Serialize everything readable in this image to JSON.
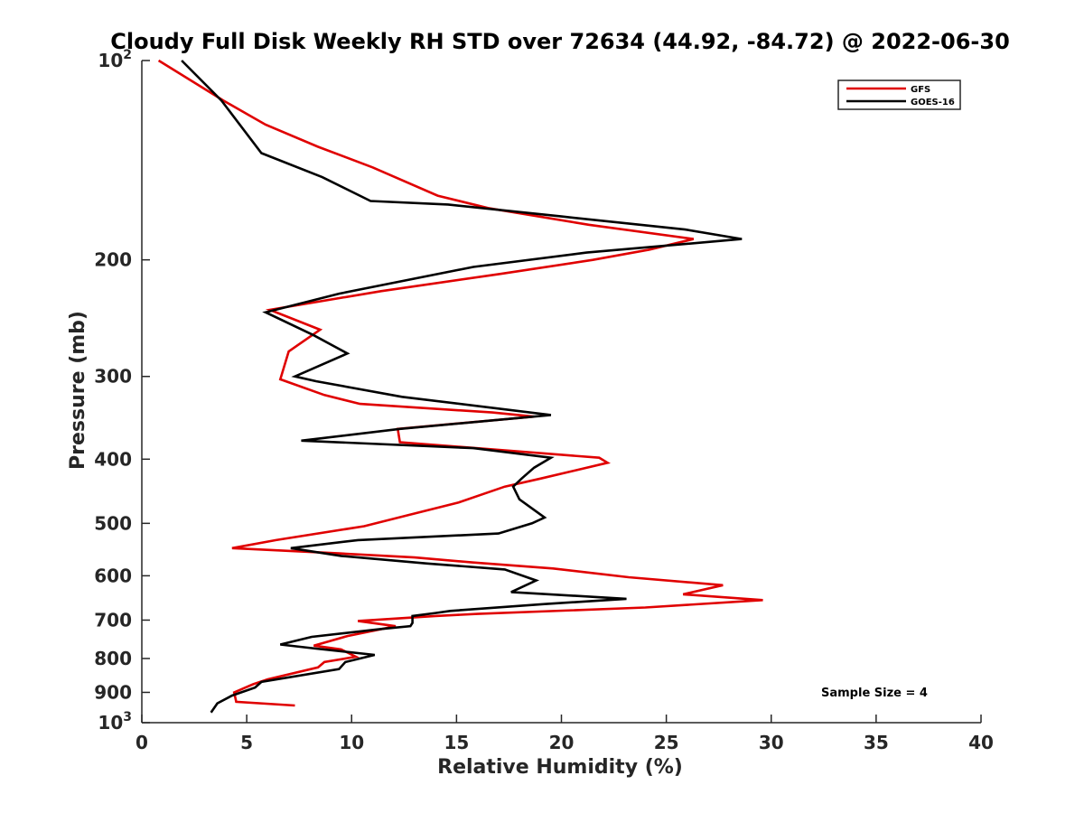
{
  "chart_data": {
    "type": "line",
    "title": "Cloudy Full Disk Weekly RH STD over 72634 (44.92, -84.72) @ 2022-06-30",
    "xlabel": "Relative Humidity (%)",
    "ylabel": "Pressure (mb)",
    "xlim": [
      0,
      40
    ],
    "ylim": [
      100,
      1000
    ],
    "y_scale": "log",
    "y_reversed": true,
    "grid": false,
    "legend_position": "top-right",
    "x_ticks": [
      0,
      5,
      10,
      15,
      20,
      25,
      30,
      35,
      40
    ],
    "y_ticks": [
      {
        "value": 100,
        "label": "10",
        "sup": "2"
      },
      {
        "value": 200,
        "label": "200"
      },
      {
        "value": 300,
        "label": "300"
      },
      {
        "value": 400,
        "label": "400"
      },
      {
        "value": 500,
        "label": "500"
      },
      {
        "value": 600,
        "label": "600"
      },
      {
        "value": 700,
        "label": "700"
      },
      {
        "value": 800,
        "label": "800"
      },
      {
        "value": 900,
        "label": "900"
      },
      {
        "value": 1000,
        "label": "10",
        "sup": "3"
      }
    ],
    "annotation": "Sample Size = 4",
    "series": [
      {
        "name": "GFS",
        "color": "#e00000",
        "points": [
          [
            0.8,
            100
          ],
          [
            3.9,
            115
          ],
          [
            5.9,
            125
          ],
          [
            8.4,
            135
          ],
          [
            11.0,
            145
          ],
          [
            14.1,
            160
          ],
          [
            16.5,
            167
          ],
          [
            21.3,
            177
          ],
          [
            26.3,
            186
          ],
          [
            24.2,
            193
          ],
          [
            21.5,
            200
          ],
          [
            17.1,
            210
          ],
          [
            11.4,
            223
          ],
          [
            6.1,
            238
          ],
          [
            8.5,
            255
          ],
          [
            7.0,
            275
          ],
          [
            6.6,
            303
          ],
          [
            8.7,
            320
          ],
          [
            10.4,
            330
          ],
          [
            16.7,
            340
          ],
          [
            18.7,
            345
          ],
          [
            12.2,
            360
          ],
          [
            12.3,
            377
          ],
          [
            21.8,
            398
          ],
          [
            22.2,
            405
          ],
          [
            19.0,
            428
          ],
          [
            17.3,
            440
          ],
          [
            15.1,
            465
          ],
          [
            12.8,
            485
          ],
          [
            10.6,
            505
          ],
          [
            6.4,
            530
          ],
          [
            4.3,
            545
          ],
          [
            9.4,
            555
          ],
          [
            13.0,
            563
          ],
          [
            15.8,
            573
          ],
          [
            19.6,
            585
          ],
          [
            23.2,
            603
          ],
          [
            27.7,
            620
          ],
          [
            25.8,
            640
          ],
          [
            29.6,
            653
          ],
          [
            24.0,
            670
          ],
          [
            16.0,
            685
          ],
          [
            14.0,
            690
          ],
          [
            10.3,
            702
          ],
          [
            12.1,
            715
          ],
          [
            9.8,
            740
          ],
          [
            8.2,
            765
          ],
          [
            9.5,
            775
          ],
          [
            10.2,
            795
          ],
          [
            8.7,
            810
          ],
          [
            8.4,
            825
          ],
          [
            6.0,
            860
          ],
          [
            5.3,
            875
          ],
          [
            4.4,
            900
          ],
          [
            4.5,
            930
          ],
          [
            7.3,
            942
          ]
        ]
      },
      {
        "name": "GOES-16",
        "color": "#000000",
        "points": [
          [
            1.9,
            100
          ],
          [
            3.8,
            115
          ],
          [
            5.7,
            138
          ],
          [
            8.6,
            150
          ],
          [
            10.9,
            163
          ],
          [
            14.6,
            165
          ],
          [
            20.0,
            172
          ],
          [
            25.9,
            180
          ],
          [
            28.6,
            186
          ],
          [
            21.2,
            195
          ],
          [
            15.8,
            205
          ],
          [
            9.4,
            225
          ],
          [
            5.9,
            240
          ],
          [
            8.2,
            260
          ],
          [
            9.8,
            277
          ],
          [
            7.3,
            300
          ],
          [
            8.3,
            305
          ],
          [
            12.4,
            322
          ],
          [
            19.5,
            343
          ],
          [
            12.3,
            360
          ],
          [
            7.6,
            375
          ],
          [
            15.8,
            385
          ],
          [
            19.5,
            398
          ],
          [
            18.7,
            412
          ],
          [
            18.1,
            428
          ],
          [
            17.7,
            440
          ],
          [
            18.0,
            460
          ],
          [
            19.2,
            490
          ],
          [
            18.6,
            500
          ],
          [
            17.0,
            518
          ],
          [
            10.3,
            530
          ],
          [
            7.1,
            545
          ],
          [
            9.5,
            560
          ],
          [
            13.6,
            575
          ],
          [
            17.3,
            587
          ],
          [
            18.8,
            610
          ],
          [
            17.6,
            635
          ],
          [
            23.1,
            650
          ],
          [
            19.2,
            662
          ],
          [
            14.7,
            678
          ],
          [
            14.0,
            683
          ],
          [
            12.9,
            690
          ],
          [
            12.9,
            707
          ],
          [
            12.8,
            715
          ],
          [
            11.4,
            722
          ],
          [
            8.1,
            742
          ],
          [
            6.6,
            762
          ],
          [
            8.3,
            773
          ],
          [
            11.1,
            790
          ],
          [
            9.7,
            810
          ],
          [
            9.4,
            830
          ],
          [
            5.7,
            868
          ],
          [
            5.4,
            885
          ],
          [
            4.3,
            910
          ],
          [
            3.6,
            935
          ],
          [
            3.3,
            965
          ]
        ]
      }
    ]
  }
}
